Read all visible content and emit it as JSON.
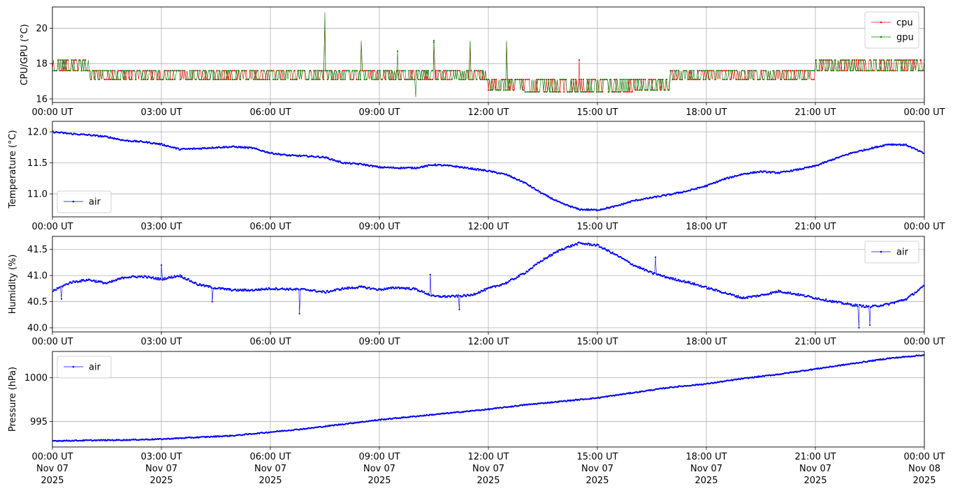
{
  "chart_data": [
    {
      "type": "line",
      "ylabel": "CPU/GPU (°C)",
      "ylim": [
        15.8,
        21.2
      ],
      "yticks": [
        16,
        18,
        20
      ],
      "xlim": [
        0,
        24
      ],
      "xticks": [
        "00:00 UT",
        "03:00 UT",
        "06:00 UT",
        "09:00 UT",
        "12:00 UT",
        "15:00 UT",
        "18:00 UT",
        "21:00 UT",
        "00:00 UT"
      ],
      "grid": true,
      "legend": "upper right",
      "series": [
        {
          "name": "cpu",
          "color": "#ff0000",
          "base": [
            17.6,
            17.6,
            17.6,
            17.6,
            17.6,
            17.6,
            17.6,
            17.6,
            17.6,
            17.6,
            17.6,
            17.6,
            17.1,
            16.4,
            16.4,
            16.4,
            17.1,
            17.1,
            17.6,
            17.6,
            17.6,
            17.6,
            17.6,
            17.6,
            17.6
          ],
          "alt": [
            18.2,
            17.1,
            17.1,
            17.1,
            17.1,
            17.1,
            17.1,
            17.1,
            17.1,
            17.1,
            17.1,
            17.1,
            16.5,
            17.1,
            17.1,
            17.1,
            16.5,
            17.6,
            17.1,
            17.1,
            17.1,
            18.2,
            18.2,
            18.2,
            18.2
          ],
          "spikes": [
            [
              7.5,
              20.3
            ],
            [
              8.5,
              19.2
            ],
            [
              10.5,
              19.2
            ],
            [
              11.5,
              19.2
            ],
            [
              12.5,
              19.2
            ],
            [
              14.5,
              18.2
            ]
          ]
        },
        {
          "name": "gpu",
          "color": "#008000",
          "base": [
            17.6,
            17.6,
            17.6,
            17.6,
            17.6,
            17.6,
            17.6,
            17.6,
            17.6,
            17.6,
            17.6,
            17.6,
            17.1,
            16.4,
            16.4,
            16.4,
            17.1,
            17.1,
            17.6,
            17.6,
            17.6,
            17.6,
            17.6,
            17.6,
            17.6
          ],
          "alt": [
            18.2,
            17.1,
            17.1,
            17.1,
            17.1,
            17.1,
            17.1,
            17.1,
            17.1,
            17.1,
            17.1,
            17.1,
            16.5,
            17.1,
            17.1,
            17.1,
            16.5,
            17.6,
            17.1,
            17.1,
            17.1,
            18.2,
            18.2,
            18.2,
            18.2
          ],
          "spikes": [
            [
              7.5,
              20.9
            ],
            [
              8.5,
              19.3
            ],
            [
              9.5,
              18.7
            ],
            [
              10.5,
              19.3
            ],
            [
              11.5,
              19.3
            ],
            [
              12.5,
              19.3
            ],
            [
              10.0,
              16.1
            ]
          ]
        }
      ]
    },
    {
      "type": "line",
      "ylabel": "Temperature (°C)",
      "ylim": [
        10.63,
        12.17
      ],
      "yticks": [
        11.0,
        11.5,
        12.0
      ],
      "xlim": [
        0,
        24
      ],
      "xticks": [
        "00:00 UT",
        "03:00 UT",
        "06:00 UT",
        "09:00 UT",
        "12:00 UT",
        "15:00 UT",
        "18:00 UT",
        "21:00 UT",
        "00:00 UT"
      ],
      "grid": true,
      "legend": "lower left",
      "series": [
        {
          "name": "air",
          "color": "#0000ff",
          "x": [
            0,
            0.5,
            1,
            1.5,
            2,
            2.5,
            3,
            3.5,
            4,
            4.5,
            5,
            5.5,
            6,
            6.5,
            7,
            7.5,
            8,
            8.5,
            9,
            9.5,
            10,
            10.5,
            11,
            11.5,
            12,
            12.5,
            13,
            13.5,
            14,
            14.5,
            15,
            15.5,
            16,
            16.5,
            17,
            17.5,
            18,
            18.5,
            19,
            19.5,
            20,
            20.5,
            21,
            21.5,
            22,
            22.5,
            23,
            23.5,
            24
          ],
          "values": [
            12.0,
            11.97,
            11.95,
            11.92,
            11.86,
            11.84,
            11.8,
            11.72,
            11.73,
            11.75,
            11.76,
            11.74,
            11.66,
            11.62,
            11.61,
            11.59,
            11.5,
            11.48,
            11.43,
            11.42,
            11.42,
            11.47,
            11.45,
            11.41,
            11.37,
            11.31,
            11.18,
            11.0,
            10.85,
            10.75,
            10.74,
            10.8,
            10.89,
            10.94,
            10.99,
            11.05,
            11.13,
            11.24,
            11.32,
            11.36,
            11.34,
            11.39,
            11.45,
            11.56,
            11.66,
            11.73,
            11.8,
            11.79,
            11.65
          ],
          "noise": 0.012
        }
      ]
    },
    {
      "type": "line",
      "ylabel": "Humidity (%)",
      "ylim": [
        39.92,
        41.75
      ],
      "yticks": [
        40.0,
        40.5,
        41.0,
        41.5
      ],
      "xlim": [
        0,
        24
      ],
      "xticks": [
        "00:00 UT",
        "03:00 UT",
        "06:00 UT",
        "09:00 UT",
        "12:00 UT",
        "15:00 UT",
        "18:00 UT",
        "21:00 UT",
        "00:00 UT"
      ],
      "grid": true,
      "legend": "upper right",
      "series": [
        {
          "name": "air",
          "color": "#0000ff",
          "x": [
            0,
            0.5,
            1,
            1.5,
            2,
            2.5,
            3,
            3.5,
            4,
            4.5,
            5,
            5.5,
            6,
            6.5,
            7,
            7.5,
            8,
            8.5,
            9,
            9.5,
            10,
            10.5,
            11,
            11.5,
            12,
            12.5,
            13,
            13.5,
            14,
            14.5,
            15,
            15.5,
            16,
            16.5,
            17,
            17.5,
            18,
            18.5,
            19,
            19.5,
            20,
            20.5,
            21,
            21.5,
            22,
            22.5,
            23,
            23.5,
            24
          ],
          "values": [
            40.7,
            40.87,
            40.92,
            40.85,
            40.97,
            40.98,
            40.93,
            41.0,
            40.83,
            40.76,
            40.72,
            40.72,
            40.75,
            40.74,
            40.73,
            40.68,
            40.75,
            40.78,
            40.73,
            40.77,
            40.74,
            40.6,
            40.6,
            40.62,
            40.75,
            40.86,
            41.05,
            41.3,
            41.5,
            41.62,
            41.58,
            41.4,
            41.2,
            41.05,
            40.95,
            40.87,
            40.77,
            40.67,
            40.57,
            40.62,
            40.7,
            40.64,
            40.57,
            40.5,
            40.44,
            40.4,
            40.45,
            40.55,
            40.8
          ],
          "noise": 0.02,
          "dips": [
            [
              0.25,
              40.55
            ],
            [
              6.8,
              40.27
            ],
            [
              10.4,
              41.02
            ],
            [
              11.2,
              40.35
            ],
            [
              16.6,
              41.35
            ],
            [
              22.2,
              40.0
            ],
            [
              22.5,
              40.05
            ],
            [
              4.4,
              40.5
            ],
            [
              3.0,
              41.2
            ]
          ]
        }
      ]
    },
    {
      "type": "line",
      "ylabel": "Pressure (hPa)",
      "ylim": [
        992.1,
        1003.0
      ],
      "yticks": [
        995,
        1000
      ],
      "xlim": [
        0,
        24
      ],
      "xticks": [
        "00:00 UT\nNov 07\n2025",
        "03:00 UT\nNov 07\n2025",
        "06:00 UT\nNov 07\n2025",
        "09:00 UT\nNov 07\n2025",
        "12:00 UT\nNov 07\n2025",
        "15:00 UT\nNov 07\n2025",
        "18:00 UT\nNov 07\n2025",
        "21:00 UT\nNov 07\n2025",
        "00:00 UT\nNov 08\n2025"
      ],
      "grid": true,
      "legend": "upper left",
      "series": [
        {
          "name": "air",
          "color": "#0000ff",
          "x": [
            0,
            1,
            2,
            3,
            4,
            5,
            6,
            7,
            8,
            9,
            10,
            11,
            12,
            13,
            14,
            15,
            16,
            17,
            18,
            19,
            20,
            21,
            22,
            23,
            24
          ],
          "values": [
            992.8,
            992.85,
            992.9,
            993.0,
            993.2,
            993.4,
            993.8,
            994.2,
            994.7,
            995.2,
            995.6,
            996.0,
            996.4,
            996.9,
            997.3,
            997.7,
            998.3,
            998.9,
            999.3,
            999.9,
            1000.4,
            1001.0,
            1001.6,
            1002.2,
            1002.6
          ]
        }
      ]
    }
  ]
}
